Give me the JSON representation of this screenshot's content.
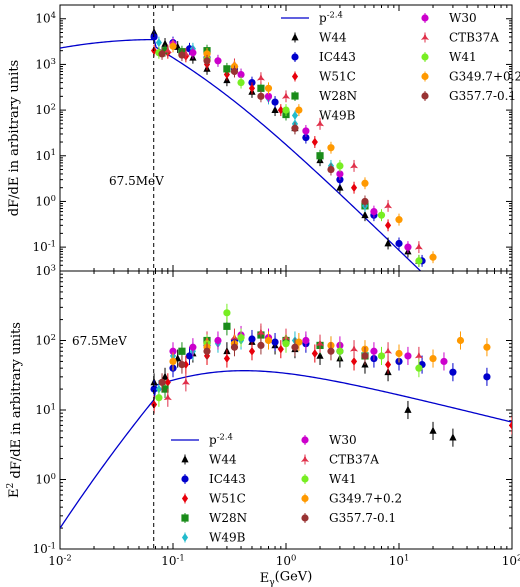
{
  "chart_data": [
    {
      "type": "scatter",
      "panel": "top",
      "ylabel": "dF/dE in arbitrary units",
      "xscale": "log",
      "yscale": "log",
      "xlim": [
        0.01,
        100
      ],
      "ylim": [
        0.03,
        20000
      ],
      "annotation": "67.5MeV",
      "vline_x": 0.0675,
      "legend_position": "top-right",
      "model": {
        "name": "p^{-2.4}",
        "color": "#0000cc"
      },
      "series": [
        {
          "name": "W44",
          "color": "#000000",
          "marker": "triangle",
          "points": [
            [
              0.068,
              5000
            ],
            [
              0.085,
              2800
            ],
            [
              0.11,
              2400
            ],
            [
              0.15,
              1400
            ],
            [
              0.2,
              800
            ],
            [
              0.3,
              450
            ],
            [
              0.5,
              250
            ],
            [
              0.8,
              100
            ],
            [
              1.2,
              40
            ],
            [
              2,
              8
            ],
            [
              3,
              2
            ],
            [
              5,
              0.5
            ],
            [
              8,
              0.12
            ],
            [
              12,
              0.08
            ],
            [
              15,
              0.05
            ]
          ]
        },
        {
          "name": "IC443",
          "color": "#0000cc",
          "marker": "circle",
          "points": [
            [
              0.068,
              4000
            ],
            [
              0.1,
              3000
            ],
            [
              0.14,
              2200
            ],
            [
              0.2,
              1400
            ],
            [
              0.35,
              800
            ],
            [
              0.5,
              400
            ],
            [
              0.8,
              150
            ],
            [
              1.5,
              25
            ],
            [
              3,
              3
            ],
            [
              6,
              0.5
            ],
            [
              10,
              0.12
            ],
            [
              16,
              0.05
            ]
          ]
        },
        {
          "name": "W51C",
          "color": "#e8000b",
          "marker": "diamond",
          "points": [
            [
              0.068,
              2000
            ],
            [
              0.09,
              1800
            ],
            [
              0.13,
              1500
            ],
            [
              0.2,
              1000
            ],
            [
              0.3,
              600
            ],
            [
              0.5,
              300
            ],
            [
              0.9,
              100
            ],
            [
              1.8,
              20
            ],
            [
              4,
              2
            ],
            [
              8,
              0.3
            ]
          ]
        },
        {
          "name": "W28N",
          "color": "#1a8c1a",
          "marker": "square",
          "points": [
            [
              0.085,
              2000
            ],
            [
              0.12,
              1900
            ],
            [
              0.2,
              2000
            ],
            [
              0.3,
              800
            ],
            [
              0.6,
              300
            ],
            [
              1,
              80
            ],
            [
              2,
              10
            ],
            [
              5,
              0.8
            ]
          ]
        },
        {
          "name": "W49B",
          "color": "#22bbcc",
          "marker": "diamond",
          "points": [
            [
              0.075,
              3000
            ],
            [
              0.1,
              2500
            ],
            [
              0.15,
              2200
            ],
            [
              0.25,
              1200
            ],
            [
              0.4,
              600
            ],
            [
              0.7,
              180
            ],
            [
              1.2,
              50
            ],
            [
              2.5,
              6
            ],
            [
              5,
              0.8
            ]
          ]
        },
        {
          "name": "W30",
          "color": "#cc00cc",
          "marker": "circle",
          "points": [
            [
              0.1,
              2800
            ],
            [
              0.15,
              1800
            ],
            [
              0.25,
              1200
            ],
            [
              0.4,
              600
            ],
            [
              0.7,
              200
            ],
            [
              1.5,
              35
            ],
            [
              3,
              4
            ],
            [
              6,
              0.6
            ],
            [
              12,
              0.1
            ]
          ]
        },
        {
          "name": "CTB37A",
          "color": "#e0304a",
          "marker": "star",
          "points": [
            [
              0.09,
              2000
            ],
            [
              0.13,
              1700
            ],
            [
              0.2,
              1500
            ],
            [
              0.35,
              1000
            ],
            [
              0.6,
              500
            ],
            [
              1,
              200
            ],
            [
              2,
              50
            ],
            [
              4,
              6
            ],
            [
              8,
              0.8
            ],
            [
              15,
              0.1
            ]
          ]
        },
        {
          "name": "W41",
          "color": "#77ee22",
          "marker": "circle",
          "points": [
            [
              0.075,
              1800
            ],
            [
              0.2,
              1300
            ],
            [
              0.4,
              400
            ],
            [
              1,
              100
            ],
            [
              3,
              6
            ],
            [
              7,
              0.5
            ],
            [
              15,
              0.05
            ]
          ]
        },
        {
          "name": "G349.7+0.2",
          "color": "#ff9900",
          "marker": "circle",
          "points": [
            [
              0.1,
              2500
            ],
            [
              0.2,
              1700
            ],
            [
              0.35,
              900
            ],
            [
              0.7,
              300
            ],
            [
              1.3,
              100
            ],
            [
              2.5,
              15
            ],
            [
              5,
              2.5
            ],
            [
              10,
              0.4
            ],
            [
              20,
              0.06
            ]
          ]
        },
        {
          "name": "G357.7-0.1",
          "color": "#993333",
          "marker": "circle",
          "points": [
            [
              0.08,
              1700
            ],
            [
              0.12,
              1600
            ],
            [
              0.2,
              1200
            ],
            [
              0.35,
              700
            ],
            [
              0.6,
              200
            ],
            [
              1.2,
              40
            ],
            [
              2.5,
              5
            ],
            [
              5,
              1
            ]
          ]
        }
      ]
    },
    {
      "type": "scatter",
      "panel": "bottom",
      "xlabel": "E_γ(GeV)",
      "ylabel": "E^2 dF/dE in arbitrary units",
      "xscale": "log",
      "yscale": "log",
      "xlim": [
        0.01,
        100
      ],
      "ylim": [
        0.1,
        1000
      ],
      "annotation": "67.5MeV",
      "vline_x": 0.0675,
      "legend_position": "bottom-center",
      "x_tick_labels": [
        "10^{-2}",
        "10^{-1}",
        "10^{0}",
        "10^{1}",
        "10^{2}"
      ],
      "model": {
        "name": "p^{-2.4}",
        "color": "#0000cc"
      },
      "series": [
        {
          "name": "W44",
          "color": "#000000",
          "marker": "triangle",
          "points": [
            [
              0.068,
              25
            ],
            [
              0.085,
              30
            ],
            [
              0.11,
              55
            ],
            [
              0.15,
              65
            ],
            [
              0.2,
              75
            ],
            [
              0.3,
              70
            ],
            [
              0.5,
              95
            ],
            [
              0.8,
              85
            ],
            [
              1.2,
              75
            ],
            [
              2,
              60
            ],
            [
              3,
              55
            ],
            [
              5,
              45
            ],
            [
              8,
              35
            ],
            [
              12,
              10
            ],
            [
              20,
              5
            ],
            [
              30,
              4
            ]
          ]
        },
        {
          "name": "IC443",
          "color": "#0000cc",
          "marker": "circle",
          "points": [
            [
              0.068,
              20
            ],
            [
              0.1,
              40
            ],
            [
              0.14,
              60
            ],
            [
              0.2,
              85
            ],
            [
              0.35,
              100
            ],
            [
              0.5,
              105
            ],
            [
              0.8,
              95
            ],
            [
              1.5,
              90
            ],
            [
              3,
              70
            ],
            [
              6,
              55
            ],
            [
              10,
              50
            ],
            [
              16,
              45
            ],
            [
              30,
              35
            ],
            [
              60,
              30
            ]
          ]
        },
        {
          "name": "W51C",
          "color": "#e8000b",
          "marker": "diamond",
          "points": [
            [
              0.068,
              12
            ],
            [
              0.09,
              25
            ],
            [
              0.13,
              45
            ],
            [
              0.2,
              60
            ],
            [
              0.3,
              55
            ],
            [
              0.5,
              70
            ],
            [
              0.9,
              75
            ],
            [
              1.8,
              65
            ],
            [
              4,
              50
            ],
            [
              8,
              45
            ],
            [
              100,
              6
            ]
          ]
        },
        {
          "name": "W28N",
          "color": "#1a8c1a",
          "marker": "square",
          "points": [
            [
              0.085,
              20
            ],
            [
              0.12,
              70
            ],
            [
              0.2,
              100
            ],
            [
              0.3,
              160
            ],
            [
              0.6,
              120
            ],
            [
              1,
              100
            ],
            [
              2,
              85
            ],
            [
              5,
              60
            ]
          ]
        },
        {
          "name": "W49B",
          "color": "#22bbcc",
          "marker": "diamond",
          "points": [
            [
              0.075,
              20
            ],
            [
              0.1,
              60
            ],
            [
              0.15,
              70
            ],
            [
              0.25,
              90
            ],
            [
              0.4,
              100
            ],
            [
              0.7,
              110
            ],
            [
              1.2,
              100
            ],
            [
              2.5,
              85
            ],
            [
              5,
              65
            ]
          ]
        },
        {
          "name": "W30",
          "color": "#cc00cc",
          "marker": "circle",
          "points": [
            [
              0.1,
              70
            ],
            [
              0.15,
              80
            ],
            [
              0.25,
              100
            ],
            [
              0.4,
              120
            ],
            [
              0.7,
              110
            ],
            [
              1.5,
              100
            ],
            [
              3,
              85
            ],
            [
              6,
              70
            ],
            [
              12,
              60
            ],
            [
              25,
              50
            ]
          ]
        },
        {
          "name": "CTB37A",
          "color": "#e0304a",
          "marker": "star",
          "points": [
            [
              0.09,
              15
            ],
            [
              0.13,
              25
            ],
            [
              0.2,
              100
            ],
            [
              0.35,
              110
            ],
            [
              0.6,
              130
            ],
            [
              1,
              110
            ],
            [
              2,
              90
            ],
            [
              4,
              75
            ],
            [
              8,
              70
            ],
            [
              15,
              60
            ]
          ]
        },
        {
          "name": "W41",
          "color": "#77ee22",
          "marker": "circle",
          "points": [
            [
              0.075,
              15
            ],
            [
              0.2,
              90
            ],
            [
              0.3,
              250
            ],
            [
              0.4,
              110
            ],
            [
              1,
              90
            ],
            [
              3,
              70
            ],
            [
              7,
              60
            ],
            [
              15,
              40
            ]
          ]
        },
        {
          "name": "G349.7+0.2",
          "color": "#ff9900",
          "marker": "circle",
          "points": [
            [
              0.1,
              50
            ],
            [
              0.2,
              80
            ],
            [
              0.35,
              90
            ],
            [
              0.7,
              100
            ],
            [
              1.3,
              95
            ],
            [
              2.5,
              85
            ],
            [
              5,
              75
            ],
            [
              10,
              65
            ],
            [
              20,
              55
            ],
            [
              35,
              100
            ],
            [
              60,
              80
            ]
          ]
        },
        {
          "name": "G357.7-0.1",
          "color": "#993333",
          "marker": "circle",
          "points": [
            [
              0.08,
              25
            ],
            [
              0.12,
              45
            ],
            [
              0.2,
              70
            ],
            [
              0.35,
              80
            ],
            [
              0.6,
              85
            ],
            [
              1.2,
              80
            ],
            [
              2.5,
              70
            ],
            [
              5,
              60
            ]
          ]
        }
      ]
    }
  ]
}
